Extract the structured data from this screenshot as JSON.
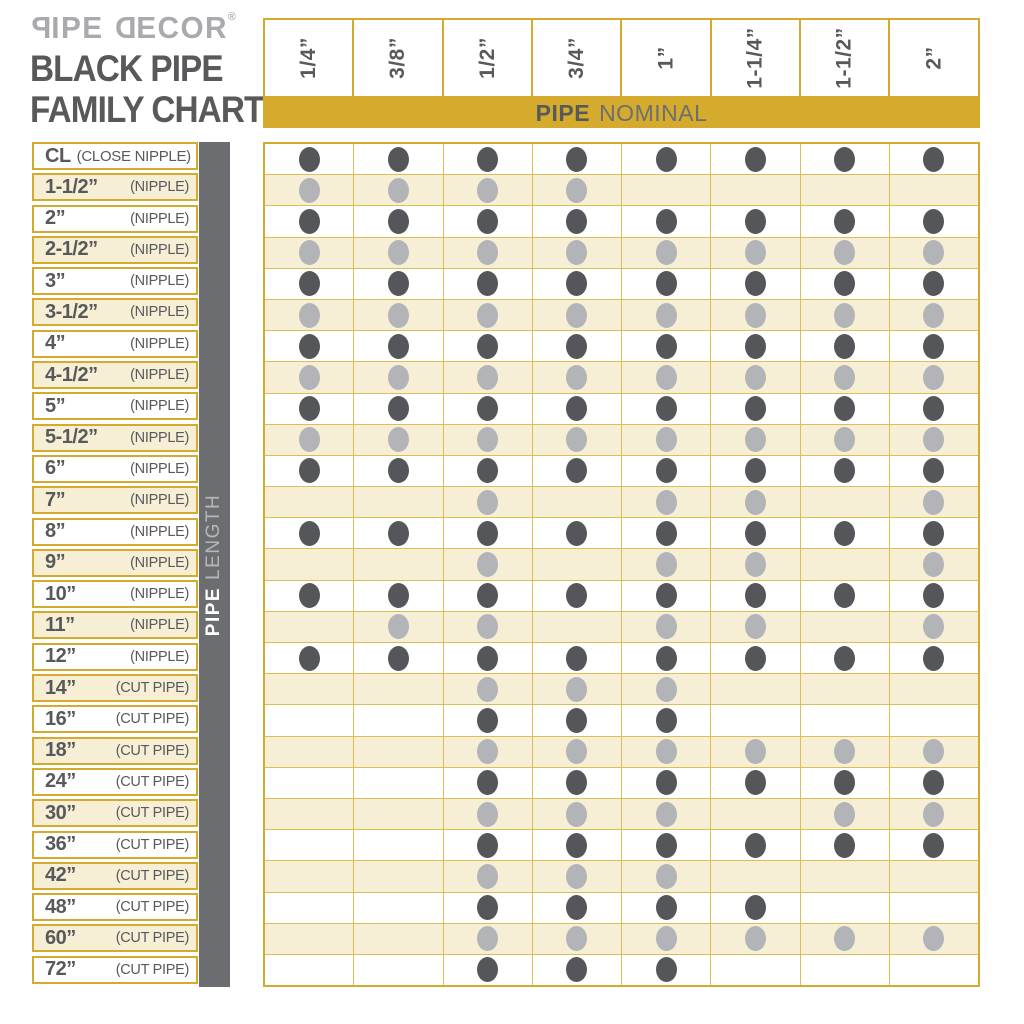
{
  "brand": {
    "logo_part1_mirrored": "P",
    "logo_part1_rest": "IPE ",
    "logo_part2_mirrored": "D",
    "logo_part2_rest": "ECOR",
    "registered_mark": "®",
    "title_line1": "BLACK PIPE",
    "title_line2": "FAMILY CHART"
  },
  "axis_headers": {
    "top_bold": "PIPE",
    "top_rest": "NOMINAL",
    "side_bold": "PIPE",
    "side_rest": "LENGTH"
  },
  "colors": {
    "gold": "#D4AB2D",
    "gold_line": "#DCBE55",
    "cream": "#F6EFD6",
    "dark": "#58595B",
    "dot_dark": "#55565A",
    "dot_light": "#B2B4B7",
    "bar_gray": "#6C6D70",
    "logo_gray": "#A8AAAD",
    "nominal_rest": "#6D6E71",
    "length_rest": "#B5B7B9"
  },
  "chart_data": {
    "type": "table",
    "title": "BLACK PIPE FAMILY CHART",
    "columns_axis_label": "PIPE NOMINAL",
    "rows_axis_label": "PIPE LENGTH",
    "columns": [
      "1/4”",
      "3/8”",
      "1/2”",
      "3/4”",
      "1”",
      "1-1/4”",
      "1-1/2”",
      "2”"
    ],
    "rows": [
      {
        "label": "CL",
        "note": "(CLOSE NIPPLE)",
        "dots": [
          1,
          1,
          1,
          1,
          1,
          1,
          1,
          1
        ]
      },
      {
        "label": "1-1/2”",
        "note": "(NIPPLE)",
        "dots": [
          1,
          1,
          1,
          1,
          0,
          0,
          0,
          0
        ]
      },
      {
        "label": "2”",
        "note": "(NIPPLE)",
        "dots": [
          1,
          1,
          1,
          1,
          1,
          1,
          1,
          1
        ]
      },
      {
        "label": "2-1/2”",
        "note": "(NIPPLE)",
        "dots": [
          1,
          1,
          1,
          1,
          1,
          1,
          1,
          1
        ]
      },
      {
        "label": "3”",
        "note": "(NIPPLE)",
        "dots": [
          1,
          1,
          1,
          1,
          1,
          1,
          1,
          1
        ]
      },
      {
        "label": "3-1/2”",
        "note": "(NIPPLE)",
        "dots": [
          1,
          1,
          1,
          1,
          1,
          1,
          1,
          1
        ]
      },
      {
        "label": "4”",
        "note": "(NIPPLE)",
        "dots": [
          1,
          1,
          1,
          1,
          1,
          1,
          1,
          1
        ]
      },
      {
        "label": "4-1/2”",
        "note": "(NIPPLE)",
        "dots": [
          1,
          1,
          1,
          1,
          1,
          1,
          1,
          1
        ]
      },
      {
        "label": "5”",
        "note": "(NIPPLE)",
        "dots": [
          1,
          1,
          1,
          1,
          1,
          1,
          1,
          1
        ]
      },
      {
        "label": "5-1/2”",
        "note": "(NIPPLE)",
        "dots": [
          1,
          1,
          1,
          1,
          1,
          1,
          1,
          1
        ]
      },
      {
        "label": "6”",
        "note": "(NIPPLE)",
        "dots": [
          1,
          1,
          1,
          1,
          1,
          1,
          1,
          1
        ]
      },
      {
        "label": "7”",
        "note": "(NIPPLE)",
        "dots": [
          0,
          0,
          1,
          0,
          1,
          1,
          0,
          1
        ]
      },
      {
        "label": "8”",
        "note": "(NIPPLE)",
        "dots": [
          1,
          1,
          1,
          1,
          1,
          1,
          1,
          1
        ]
      },
      {
        "label": "9”",
        "note": "(NIPPLE)",
        "dots": [
          0,
          0,
          1,
          0,
          1,
          1,
          0,
          1
        ]
      },
      {
        "label": "10”",
        "note": "(NIPPLE)",
        "dots": [
          1,
          1,
          1,
          1,
          1,
          1,
          1,
          1
        ]
      },
      {
        "label": "11”",
        "note": "(NIPPLE)",
        "dots": [
          0,
          1,
          1,
          0,
          1,
          1,
          0,
          1
        ]
      },
      {
        "label": "12”",
        "note": "(NIPPLE)",
        "dots": [
          1,
          1,
          1,
          1,
          1,
          1,
          1,
          1
        ]
      },
      {
        "label": "14”",
        "note": "(CUT PIPE)",
        "dots": [
          0,
          0,
          1,
          1,
          1,
          0,
          0,
          0
        ]
      },
      {
        "label": "16”",
        "note": "(CUT PIPE)",
        "dots": [
          0,
          0,
          1,
          1,
          1,
          0,
          0,
          0
        ]
      },
      {
        "label": "18”",
        "note": "(CUT PIPE)",
        "dots": [
          0,
          0,
          1,
          1,
          1,
          1,
          1,
          1
        ]
      },
      {
        "label": "24”",
        "note": "(CUT PIPE)",
        "dots": [
          0,
          0,
          1,
          1,
          1,
          1,
          1,
          1
        ]
      },
      {
        "label": "30”",
        "note": "(CUT PIPE)",
        "dots": [
          0,
          0,
          1,
          1,
          1,
          0,
          1,
          1
        ]
      },
      {
        "label": "36”",
        "note": "(CUT PIPE)",
        "dots": [
          0,
          0,
          1,
          1,
          1,
          1,
          1,
          1
        ]
      },
      {
        "label": "42”",
        "note": "(CUT PIPE)",
        "dots": [
          0,
          0,
          1,
          1,
          1,
          0,
          0,
          0
        ]
      },
      {
        "label": "48”",
        "note": "(CUT PIPE)",
        "dots": [
          0,
          0,
          1,
          1,
          1,
          1,
          0,
          0
        ]
      },
      {
        "label": "60”",
        "note": "(CUT PIPE)",
        "dots": [
          0,
          0,
          1,
          1,
          1,
          1,
          1,
          1
        ]
      },
      {
        "label": "72”",
        "note": "(CUT PIPE)",
        "dots": [
          0,
          0,
          1,
          1,
          1,
          0,
          0,
          0
        ]
      }
    ]
  }
}
